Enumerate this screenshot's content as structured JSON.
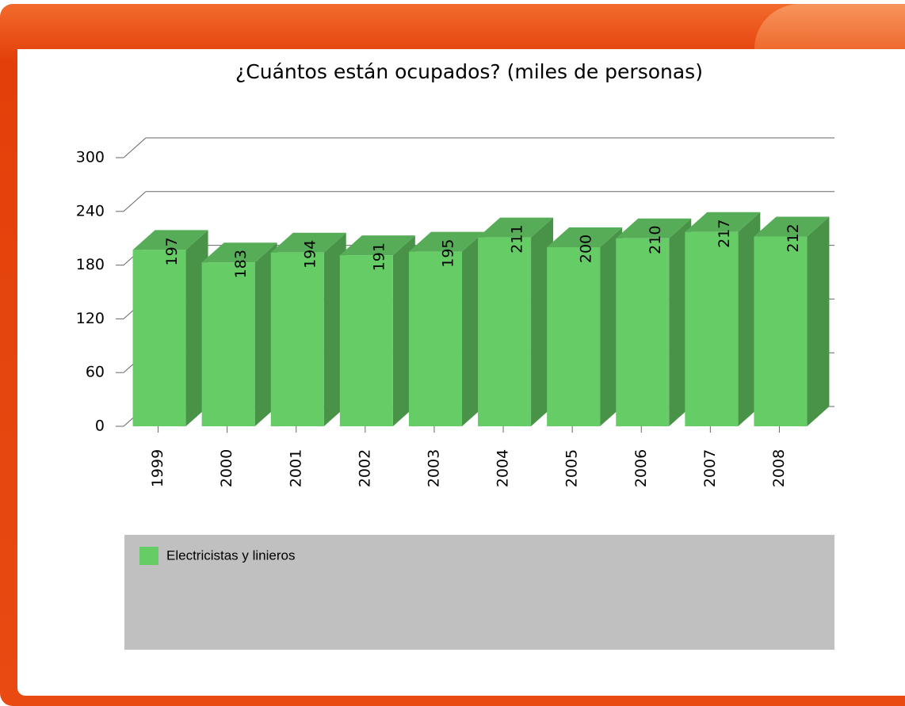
{
  "chart_data": {
    "type": "bar3d",
    "title": "¿Cuántos están ocupados? (miles de personas)",
    "categories": [
      "1999",
      "2000",
      "2001",
      "2002",
      "2003",
      "2004",
      "2005",
      "2006",
      "2007",
      "2008"
    ],
    "series": [
      {
        "name": "Electricistas y linieros",
        "color": "#66cc66",
        "values": [
          197,
          183,
          194,
          191,
          195,
          211,
          200,
          210,
          217,
          212
        ]
      }
    ],
    "ylim": [
      0,
      300
    ],
    "yticks": [
      0,
      60,
      120,
      180,
      240,
      300
    ],
    "grid": true
  }
}
